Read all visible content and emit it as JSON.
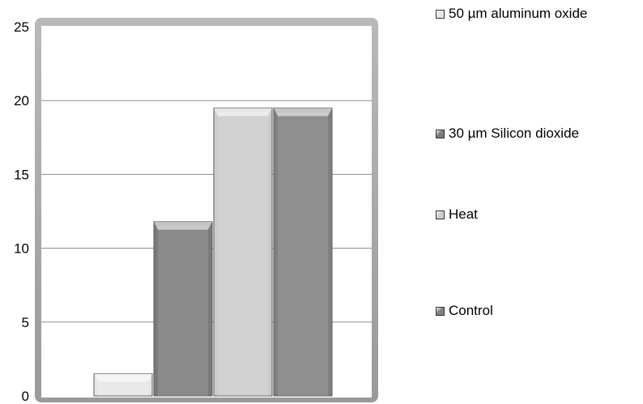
{
  "chart_data": {
    "type": "bar",
    "series": [
      {
        "name": "50 µm aluminum oxide",
        "value": 1.5,
        "color": "#e6e6e6"
      },
      {
        "name": "30 µm Silicon dioxide",
        "value": 11.8,
        "color": "#7a7a7a"
      },
      {
        "name": "Heat",
        "value": 19.5,
        "color": "#cccccc"
      },
      {
        "name": "Control",
        "value": 19.5,
        "color": "#808080"
      }
    ],
    "ylim": [
      0,
      25
    ],
    "yticks": [
      "0",
      "5",
      "10",
      "15",
      "20",
      "25"
    ],
    "grid": true,
    "legend_position": "right"
  }
}
